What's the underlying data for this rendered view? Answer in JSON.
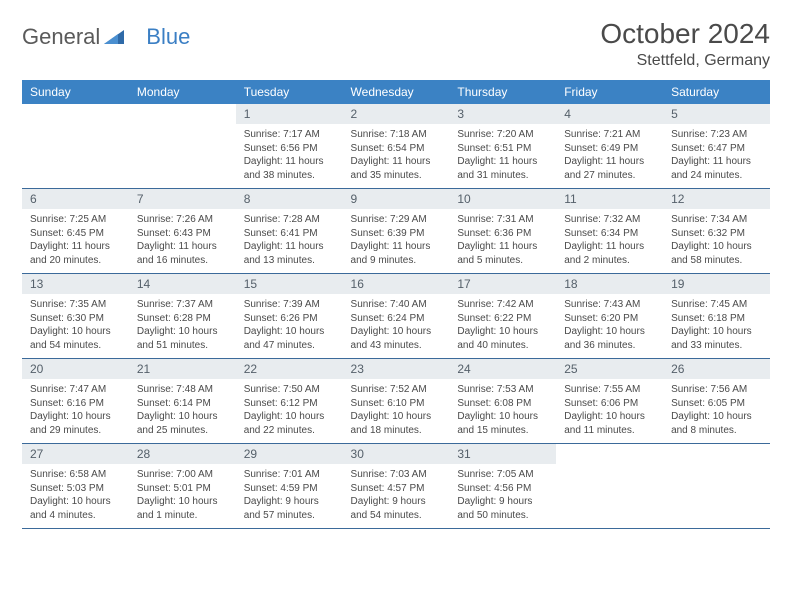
{
  "logo": {
    "general": "General",
    "blue": "Blue"
  },
  "title": "October 2024",
  "location": "Stettfeld, Germany",
  "colors": {
    "header_bg": "#3b82c4",
    "header_text": "#ffffff",
    "daynum_bg": "#e8ecef",
    "row_border": "#3b6a9a",
    "text": "#4a4a4a",
    "logo_blue": "#3b7fc4"
  },
  "fonts": {
    "title_size": 28,
    "location_size": 16,
    "day_header_size": 12,
    "daynum_size": 12,
    "body_size": 10
  },
  "day_headers": [
    "Sunday",
    "Monday",
    "Tuesday",
    "Wednesday",
    "Thursday",
    "Friday",
    "Saturday"
  ],
  "weeks": [
    [
      null,
      null,
      {
        "n": "1",
        "sunrise": "Sunrise: 7:17 AM",
        "sunset": "Sunset: 6:56 PM",
        "dl1": "Daylight: 11 hours",
        "dl2": "and 38 minutes."
      },
      {
        "n": "2",
        "sunrise": "Sunrise: 7:18 AM",
        "sunset": "Sunset: 6:54 PM",
        "dl1": "Daylight: 11 hours",
        "dl2": "and 35 minutes."
      },
      {
        "n": "3",
        "sunrise": "Sunrise: 7:20 AM",
        "sunset": "Sunset: 6:51 PM",
        "dl1": "Daylight: 11 hours",
        "dl2": "and 31 minutes."
      },
      {
        "n": "4",
        "sunrise": "Sunrise: 7:21 AM",
        "sunset": "Sunset: 6:49 PM",
        "dl1": "Daylight: 11 hours",
        "dl2": "and 27 minutes."
      },
      {
        "n": "5",
        "sunrise": "Sunrise: 7:23 AM",
        "sunset": "Sunset: 6:47 PM",
        "dl1": "Daylight: 11 hours",
        "dl2": "and 24 minutes."
      }
    ],
    [
      {
        "n": "6",
        "sunrise": "Sunrise: 7:25 AM",
        "sunset": "Sunset: 6:45 PM",
        "dl1": "Daylight: 11 hours",
        "dl2": "and 20 minutes."
      },
      {
        "n": "7",
        "sunrise": "Sunrise: 7:26 AM",
        "sunset": "Sunset: 6:43 PM",
        "dl1": "Daylight: 11 hours",
        "dl2": "and 16 minutes."
      },
      {
        "n": "8",
        "sunrise": "Sunrise: 7:28 AM",
        "sunset": "Sunset: 6:41 PM",
        "dl1": "Daylight: 11 hours",
        "dl2": "and 13 minutes."
      },
      {
        "n": "9",
        "sunrise": "Sunrise: 7:29 AM",
        "sunset": "Sunset: 6:39 PM",
        "dl1": "Daylight: 11 hours",
        "dl2": "and 9 minutes."
      },
      {
        "n": "10",
        "sunrise": "Sunrise: 7:31 AM",
        "sunset": "Sunset: 6:36 PM",
        "dl1": "Daylight: 11 hours",
        "dl2": "and 5 minutes."
      },
      {
        "n": "11",
        "sunrise": "Sunrise: 7:32 AM",
        "sunset": "Sunset: 6:34 PM",
        "dl1": "Daylight: 11 hours",
        "dl2": "and 2 minutes."
      },
      {
        "n": "12",
        "sunrise": "Sunrise: 7:34 AM",
        "sunset": "Sunset: 6:32 PM",
        "dl1": "Daylight: 10 hours",
        "dl2": "and 58 minutes."
      }
    ],
    [
      {
        "n": "13",
        "sunrise": "Sunrise: 7:35 AM",
        "sunset": "Sunset: 6:30 PM",
        "dl1": "Daylight: 10 hours",
        "dl2": "and 54 minutes."
      },
      {
        "n": "14",
        "sunrise": "Sunrise: 7:37 AM",
        "sunset": "Sunset: 6:28 PM",
        "dl1": "Daylight: 10 hours",
        "dl2": "and 51 minutes."
      },
      {
        "n": "15",
        "sunrise": "Sunrise: 7:39 AM",
        "sunset": "Sunset: 6:26 PM",
        "dl1": "Daylight: 10 hours",
        "dl2": "and 47 minutes."
      },
      {
        "n": "16",
        "sunrise": "Sunrise: 7:40 AM",
        "sunset": "Sunset: 6:24 PM",
        "dl1": "Daylight: 10 hours",
        "dl2": "and 43 minutes."
      },
      {
        "n": "17",
        "sunrise": "Sunrise: 7:42 AM",
        "sunset": "Sunset: 6:22 PM",
        "dl1": "Daylight: 10 hours",
        "dl2": "and 40 minutes."
      },
      {
        "n": "18",
        "sunrise": "Sunrise: 7:43 AM",
        "sunset": "Sunset: 6:20 PM",
        "dl1": "Daylight: 10 hours",
        "dl2": "and 36 minutes."
      },
      {
        "n": "19",
        "sunrise": "Sunrise: 7:45 AM",
        "sunset": "Sunset: 6:18 PM",
        "dl1": "Daylight: 10 hours",
        "dl2": "and 33 minutes."
      }
    ],
    [
      {
        "n": "20",
        "sunrise": "Sunrise: 7:47 AM",
        "sunset": "Sunset: 6:16 PM",
        "dl1": "Daylight: 10 hours",
        "dl2": "and 29 minutes."
      },
      {
        "n": "21",
        "sunrise": "Sunrise: 7:48 AM",
        "sunset": "Sunset: 6:14 PM",
        "dl1": "Daylight: 10 hours",
        "dl2": "and 25 minutes."
      },
      {
        "n": "22",
        "sunrise": "Sunrise: 7:50 AM",
        "sunset": "Sunset: 6:12 PM",
        "dl1": "Daylight: 10 hours",
        "dl2": "and 22 minutes."
      },
      {
        "n": "23",
        "sunrise": "Sunrise: 7:52 AM",
        "sunset": "Sunset: 6:10 PM",
        "dl1": "Daylight: 10 hours",
        "dl2": "and 18 minutes."
      },
      {
        "n": "24",
        "sunrise": "Sunrise: 7:53 AM",
        "sunset": "Sunset: 6:08 PM",
        "dl1": "Daylight: 10 hours",
        "dl2": "and 15 minutes."
      },
      {
        "n": "25",
        "sunrise": "Sunrise: 7:55 AM",
        "sunset": "Sunset: 6:06 PM",
        "dl1": "Daylight: 10 hours",
        "dl2": "and 11 minutes."
      },
      {
        "n": "26",
        "sunrise": "Sunrise: 7:56 AM",
        "sunset": "Sunset: 6:05 PM",
        "dl1": "Daylight: 10 hours",
        "dl2": "and 8 minutes."
      }
    ],
    [
      {
        "n": "27",
        "sunrise": "Sunrise: 6:58 AM",
        "sunset": "Sunset: 5:03 PM",
        "dl1": "Daylight: 10 hours",
        "dl2": "and 4 minutes."
      },
      {
        "n": "28",
        "sunrise": "Sunrise: 7:00 AM",
        "sunset": "Sunset: 5:01 PM",
        "dl1": "Daylight: 10 hours",
        "dl2": "and 1 minute."
      },
      {
        "n": "29",
        "sunrise": "Sunrise: 7:01 AM",
        "sunset": "Sunset: 4:59 PM",
        "dl1": "Daylight: 9 hours",
        "dl2": "and 57 minutes."
      },
      {
        "n": "30",
        "sunrise": "Sunrise: 7:03 AM",
        "sunset": "Sunset: 4:57 PM",
        "dl1": "Daylight: 9 hours",
        "dl2": "and 54 minutes."
      },
      {
        "n": "31",
        "sunrise": "Sunrise: 7:05 AM",
        "sunset": "Sunset: 4:56 PM",
        "dl1": "Daylight: 9 hours",
        "dl2": "and 50 minutes."
      },
      null,
      null
    ]
  ]
}
